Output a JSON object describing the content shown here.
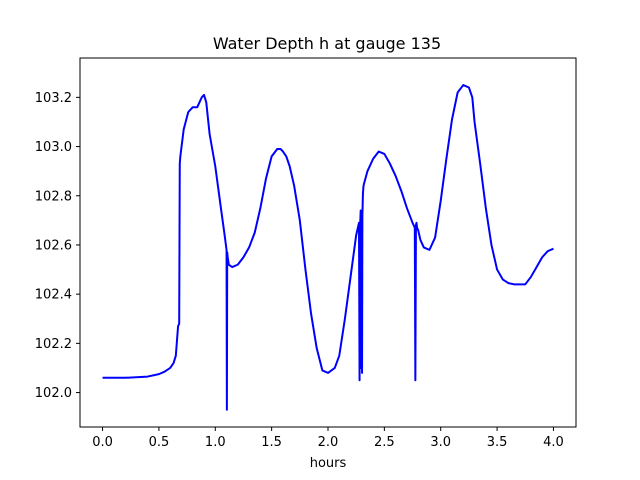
{
  "chart_data": {
    "type": "line",
    "title": "Water Depth h at gauge 135",
    "xlabel": "hours",
    "ylabel": "",
    "xlim": [
      -0.2,
      4.2
    ],
    "ylim": [
      101.86,
      103.36
    ],
    "xticks": [
      "0.0",
      "0.5",
      "1.0",
      "1.5",
      "2.0",
      "2.5",
      "3.0",
      "3.5",
      "4.0"
    ],
    "yticks": [
      "102.0",
      "102.2",
      "102.4",
      "102.6",
      "102.8",
      "103.0",
      "103.2"
    ],
    "grid": false,
    "series": [
      {
        "color": "#0000ff",
        "x": [
          0.0,
          0.2,
          0.4,
          0.5,
          0.55,
          0.6,
          0.63,
          0.65,
          0.67,
          0.68,
          0.685,
          0.69,
          0.72,
          0.76,
          0.8,
          0.84,
          0.86,
          0.88,
          0.9,
          0.92,
          0.95,
          1.0,
          1.05,
          1.08,
          1.1,
          1.103,
          1.106,
          1.11,
          1.12,
          1.15,
          1.2,
          1.25,
          1.3,
          1.35,
          1.4,
          1.45,
          1.5,
          1.55,
          1.58,
          1.6,
          1.63,
          1.66,
          1.7,
          1.75,
          1.8,
          1.85,
          1.9,
          1.95,
          2.0,
          2.03,
          2.06,
          2.1,
          2.15,
          2.2,
          2.25,
          2.275,
          2.28,
          2.285,
          2.29,
          2.295,
          2.3,
          2.302,
          2.305,
          2.31,
          2.315,
          2.32,
          2.35,
          2.4,
          2.45,
          2.5,
          2.55,
          2.6,
          2.65,
          2.7,
          2.75,
          2.77,
          2.775,
          2.78,
          2.785,
          2.79,
          2.8,
          2.82,
          2.85,
          2.9,
          2.95,
          3.0,
          3.05,
          3.1,
          3.15,
          3.2,
          3.25,
          3.28,
          3.3,
          3.35,
          3.4,
          3.45,
          3.5,
          3.55,
          3.6,
          3.65,
          3.7,
          3.75,
          3.8,
          3.85,
          3.9,
          3.95,
          4.0
        ],
        "y": [
          102.06,
          102.06,
          102.065,
          102.075,
          102.085,
          102.1,
          102.12,
          102.15,
          102.27,
          102.28,
          102.93,
          102.96,
          103.07,
          103.14,
          103.16,
          103.16,
          103.18,
          103.2,
          103.21,
          103.18,
          103.05,
          102.92,
          102.75,
          102.65,
          102.58,
          101.93,
          102.57,
          102.55,
          102.52,
          102.51,
          102.52,
          102.55,
          102.59,
          102.65,
          102.75,
          102.87,
          102.96,
          102.99,
          102.99,
          102.98,
          102.96,
          102.92,
          102.84,
          102.7,
          102.5,
          102.32,
          102.18,
          102.09,
          102.08,
          102.09,
          102.1,
          102.15,
          102.3,
          102.47,
          102.64,
          102.69,
          102.05,
          102.68,
          102.74,
          102.1,
          102.72,
          102.08,
          102.72,
          102.81,
          102.84,
          102.85,
          102.9,
          102.95,
          102.98,
          102.97,
          102.93,
          102.88,
          102.82,
          102.75,
          102.69,
          102.67,
          102.05,
          102.68,
          102.69,
          102.67,
          102.66,
          102.62,
          102.59,
          102.58,
          102.63,
          102.78,
          102.95,
          103.11,
          103.22,
          103.25,
          103.24,
          103.2,
          103.1,
          102.93,
          102.75,
          102.6,
          102.5,
          102.46,
          102.445,
          102.44,
          102.44,
          102.44,
          102.47,
          102.51,
          102.55,
          102.575,
          102.585
        ]
      }
    ]
  }
}
